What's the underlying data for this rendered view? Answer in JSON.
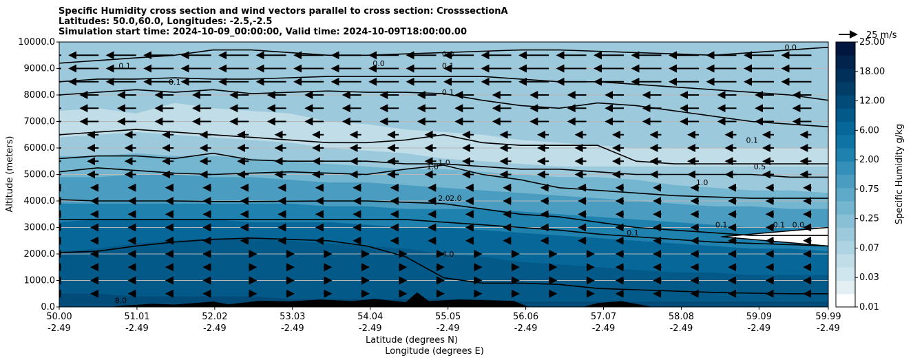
{
  "titles": {
    "line1": "Specific Humidity cross section and wind vectors parallel to cross section: CrosssectionA",
    "line2": "Latitudes: 50.0,60.0, Longitudes: -2.5,-2.5",
    "line3": "Simulation start time: 2024-10-09_00:00:00, Valid time: 2024-10-09T18:00:00.00"
  },
  "chart_data": {
    "type": "heatmap",
    "title": "Specific Humidity cross section and wind vectors parallel to cross section: CrosssectionA",
    "xlabel": "Latitude (degrees N)",
    "xlabel2": "Longitude (degrees E)",
    "ylabel": "Altitude (meters)",
    "ylim": [
      0,
      10000
    ],
    "xlim": [
      50.0,
      59.99
    ],
    "x_ticks": [
      {
        "lat": "50.00",
        "lon": "-2.49",
        "v": 50.0
      },
      {
        "lat": "51.01",
        "lon": "-2.49",
        "v": 51.01
      },
      {
        "lat": "52.02",
        "lon": "-2.49",
        "v": 52.02
      },
      {
        "lat": "53.03",
        "lon": "-2.49",
        "v": 53.03
      },
      {
        "lat": "54.04",
        "lon": "-2.49",
        "v": 54.04
      },
      {
        "lat": "55.05",
        "lon": "-2.49",
        "v": 55.05
      },
      {
        "lat": "56.06",
        "lon": "-2.49",
        "v": 56.06
      },
      {
        "lat": "57.07",
        "lon": "-2.49",
        "v": 57.07
      },
      {
        "lat": "58.08",
        "lon": "-2.49",
        "v": 58.08
      },
      {
        "lat": "59.09",
        "lon": "-2.49",
        "v": 59.09
      },
      {
        "lat": "59.99",
        "lon": "-2.49",
        "v": 59.99
      }
    ],
    "y_ticks": [
      {
        "label": "0.0",
        "v": 0
      },
      {
        "label": "1000.0",
        "v": 1000
      },
      {
        "label": "2000.0",
        "v": 2000
      },
      {
        "label": "3000.0",
        "v": 3000
      },
      {
        "label": "4000.0",
        "v": 4000
      },
      {
        "label": "5000.0",
        "v": 5000
      },
      {
        "label": "6000.0",
        "v": 6000
      },
      {
        "label": "7000.0",
        "v": 7000
      },
      {
        "label": "8000.0",
        "v": 8000
      },
      {
        "label": "9000.0",
        "v": 9000
      },
      {
        "label": "10000.0",
        "v": 10000
      }
    ],
    "colorbar": {
      "label": "Specific Humidity g/kg",
      "ticks": [
        "0.01",
        "0.03",
        "0.07",
        "0.25",
        "0.75",
        "2.00",
        "6.00",
        "12.00",
        "18.00",
        "25.00"
      ],
      "colors": [
        "#ffffff",
        "#e3eff3",
        "#d0e6ee",
        "#c0dde8",
        "#aed3e2",
        "#9ccadc",
        "#89c0d6",
        "#74b5cf",
        "#5ea9c8",
        "#4a9dc0",
        "#3490b8",
        "#1f82ae",
        "#0f74a4",
        "#066798",
        "#035988",
        "#024b78",
        "#023d68",
        "#01305a",
        "#01234c",
        "#01163e"
      ]
    },
    "wind_reference": {
      "label": "25 m/s",
      "speed": 25
    },
    "humidity_bands": [
      {
        "color_index": 3,
        "base": [
          7400,
          7500,
          7300,
          7700,
          7500,
          7400,
          7300,
          7000,
          6900,
          6700,
          6600,
          6500,
          6300,
          6200,
          6100,
          6000,
          6000,
          6000,
          6000,
          6000,
          6000
        ]
      },
      {
        "color_index": 5,
        "base": [
          6400,
          6500,
          6600,
          6500,
          6400,
          6300,
          6200,
          6000,
          5900,
          5800,
          5600,
          5500,
          5400,
          5300,
          5300,
          5300,
          5300,
          5300,
          5300,
          5300,
          5300
        ]
      },
      {
        "color_index": 7,
        "base": [
          5700,
          5700,
          5800,
          5700,
          5700,
          5600,
          5500,
          5400,
          5300,
          5200,
          5200,
          5100,
          5000,
          4900,
          4900,
          4800,
          4600,
          4500,
          4400,
          4400,
          4300
        ]
      },
      {
        "color_index": 9,
        "base": [
          4900,
          4900,
          5000,
          5000,
          4900,
          4900,
          4800,
          4700,
          4700,
          4600,
          4500,
          4400,
          4300,
          4200,
          4100,
          4000,
          3900,
          3800,
          3800,
          3700,
          3700
        ]
      },
      {
        "color_index": 11,
        "base": [
          3900,
          3900,
          3900,
          3900,
          3900,
          3900,
          3900,
          3800,
          3800,
          3700,
          3700,
          3700,
          3600,
          3500,
          3400,
          3300,
          3200,
          3100,
          3000,
          3000,
          3000
        ]
      },
      {
        "color_index": 13,
        "base": [
          3200,
          3300,
          3300,
          3300,
          3300,
          3200,
          3200,
          3200,
          3100,
          3000,
          3000,
          2900,
          2800,
          2700,
          2600,
          2500,
          2400,
          2300,
          2200,
          2200,
          2100
        ]
      },
      {
        "color_index": 14,
        "base": [
          2100,
          2200,
          2400,
          2500,
          2600,
          2600,
          2500,
          2400,
          2300,
          2200,
          2000,
          1900,
          1700,
          1600,
          1500,
          1400,
          1300,
          1300,
          1200,
          1200,
          1200
        ]
      },
      {
        "color_index": 15,
        "base": [
          500,
          500,
          400,
          400,
          400,
          400,
          300,
          300,
          300,
          300,
          300,
          300,
          200,
          200,
          200,
          200,
          200,
          200,
          200,
          200,
          200
        ]
      }
    ],
    "contour_lines": [
      {
        "name": "contour-4.0",
        "y": [
          2050,
          2100,
          2300,
          2450,
          2550,
          2600,
          2550,
          2500,
          2300,
          1900,
          1100,
          900,
          900,
          850,
          700,
          650,
          600,
          550,
          520,
          500,
          500
        ]
      },
      {
        "name": "contour-2.0",
        "y": [
          3300,
          3300,
          3300,
          3300,
          3300,
          3300,
          3300,
          3300,
          3300,
          3300,
          3200,
          3100,
          3000,
          2900,
          2750,
          2650,
          2550,
          2450,
          2400,
          2350,
          2300
        ]
      },
      {
        "name": "contour-2.0b",
        "y": [
          4050,
          4000,
          4000,
          4000,
          3980,
          3980,
          3990,
          4000,
          4000,
          3950,
          3900,
          3700,
          3500,
          3400,
          3200,
          3000,
          2900,
          2800,
          2700,
          2700,
          2700
        ]
      },
      {
        "name": "contour-1.0",
        "y": [
          5100,
          5250,
          5150,
          5050,
          5000,
          5050,
          5100,
          5050,
          5000,
          5200,
          5350,
          5000,
          4800,
          4500,
          4400,
          4300,
          4200,
          4150,
          4100,
          4100,
          4100
        ]
      },
      {
        "name": "contour-1.0b",
        "y": [
          5600,
          5700,
          5700,
          5600,
          5800,
          5550,
          5500,
          5500,
          5500,
          5400,
          5400,
          5300,
          5200,
          5200,
          5100,
          5000,
          5000,
          5000,
          5000,
          4900,
          4900
        ]
      },
      {
        "name": "contour-0.5",
        "y": [
          6500,
          6600,
          6700,
          6600,
          6500,
          6400,
          6300,
          6200,
          6200,
          6300,
          6500,
          6200,
          6100,
          6100,
          6100,
          5500,
          5400,
          5400,
          5400,
          5400,
          5400
        ]
      },
      {
        "name": "contour-0.1",
        "y": [
          8000,
          8100,
          8200,
          8100,
          8200,
          8050,
          8100,
          8150,
          8100,
          8100,
          8050,
          7800,
          7600,
          7500,
          7700,
          7600,
          7400,
          7200,
          7000,
          6900,
          6800
        ]
      },
      {
        "name": "contour-0.1b",
        "y": [
          8500,
          8600,
          8600,
          8650,
          8600,
          8600,
          8650,
          8700,
          8700,
          8700,
          8700,
          8700,
          8600,
          8500,
          8500,
          8400,
          8300,
          8200,
          8100,
          8000,
          7800
        ]
      },
      {
        "name": "contour-0.0",
        "y": [
          9200,
          9300,
          9400,
          9500,
          9700,
          9700,
          9600,
          9500,
          9500,
          9550,
          9600,
          9650,
          9700,
          9700,
          9650,
          9600,
          9550,
          9500,
          9600,
          9700,
          9800
        ]
      }
    ],
    "contour_labels": [
      {
        "text": "0.0",
        "x": 55.05,
        "y": 9550
      },
      {
        "text": "0.1",
        "x": 55.05,
        "y": 9100
      },
      {
        "text": "0.1",
        "x": 55.05,
        "y": 8100
      },
      {
        "text": "0.1",
        "x": 51.5,
        "y": 8500
      },
      {
        "text": "0.1",
        "x": 50.85,
        "y": 9100
      },
      {
        "text": "0.0",
        "x": 54.15,
        "y": 9200
      },
      {
        "text": "1.0",
        "x": 54.85,
        "y": 5300
      },
      {
        "text": "1.0",
        "x": 55.0,
        "y": 5450
      },
      {
        "text": "2.0",
        "x": 55.0,
        "y": 4100
      },
      {
        "text": "2.0",
        "x": 55.15,
        "y": 4100
      },
      {
        "text": "4.0",
        "x": 55.05,
        "y": 2000
      },
      {
        "text": "8.0",
        "x": 50.8,
        "y": 250
      },
      {
        "text": "0.0",
        "x": 59.5,
        "y": 9800
      },
      {
        "text": "0.1",
        "x": 59.0,
        "y": 6300
      },
      {
        "text": "0.5",
        "x": 59.1,
        "y": 5300
      },
      {
        "text": "1.0",
        "x": 58.35,
        "y": 4700
      },
      {
        "text": "0.1",
        "x": 58.6,
        "y": 3100
      },
      {
        "text": "0.1",
        "x": 59.35,
        "y": 3100
      },
      {
        "text": "0.0",
        "x": 59.6,
        "y": 3100
      },
      {
        "text": "0.1",
        "x": 57.45,
        "y": 2800
      }
    ],
    "terrain": [
      {
        "x": 50.0,
        "h": 0
      },
      {
        "x": 50.65,
        "h": 0
      },
      {
        "x": 50.85,
        "h": 60
      },
      {
        "x": 51.0,
        "h": 80
      },
      {
        "x": 51.2,
        "h": 120
      },
      {
        "x": 51.5,
        "h": 90
      },
      {
        "x": 52.0,
        "h": 200
      },
      {
        "x": 52.2,
        "h": 100
      },
      {
        "x": 52.6,
        "h": 230
      },
      {
        "x": 53.0,
        "h": 210
      },
      {
        "x": 53.4,
        "h": 280
      },
      {
        "x": 53.8,
        "h": 220
      },
      {
        "x": 54.1,
        "h": 300
      },
      {
        "x": 54.5,
        "h": 180
      },
      {
        "x": 54.65,
        "h": 550
      },
      {
        "x": 54.8,
        "h": 220
      },
      {
        "x": 55.2,
        "h": 280
      },
      {
        "x": 55.6,
        "h": 250
      },
      {
        "x": 55.9,
        "h": 230
      },
      {
        "x": 56.1,
        "h": 0
      },
      {
        "x": 56.8,
        "h": 0
      },
      {
        "x": 57.0,
        "h": 150
      },
      {
        "x": 57.3,
        "h": 220
      },
      {
        "x": 57.6,
        "h": 60
      },
      {
        "x": 57.7,
        "h": 0
      },
      {
        "x": 59.99,
        "h": 0
      }
    ],
    "white_wedge": {
      "x0": 58.6,
      "x1": 59.99,
      "y_low": 2300,
      "y_high": 3000
    }
  }
}
